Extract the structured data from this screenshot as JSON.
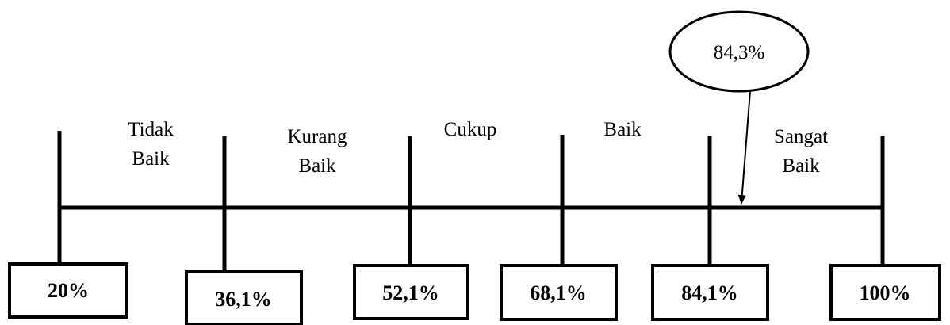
{
  "scale": {
    "boundaries": [
      "20%",
      "36,1%",
      "52,1%",
      "68,1%",
      "84,1%",
      "100%"
    ],
    "categories": [
      {
        "lines": [
          "Tidak",
          "Baik"
        ]
      },
      {
        "lines": [
          "Kurang",
          "Baik"
        ]
      },
      {
        "lines": [
          "Cukup"
        ]
      },
      {
        "lines": [
          "Baik"
        ]
      },
      {
        "lines": [
          "Sangat",
          "Baik"
        ]
      }
    ],
    "result": "84,3%"
  }
}
